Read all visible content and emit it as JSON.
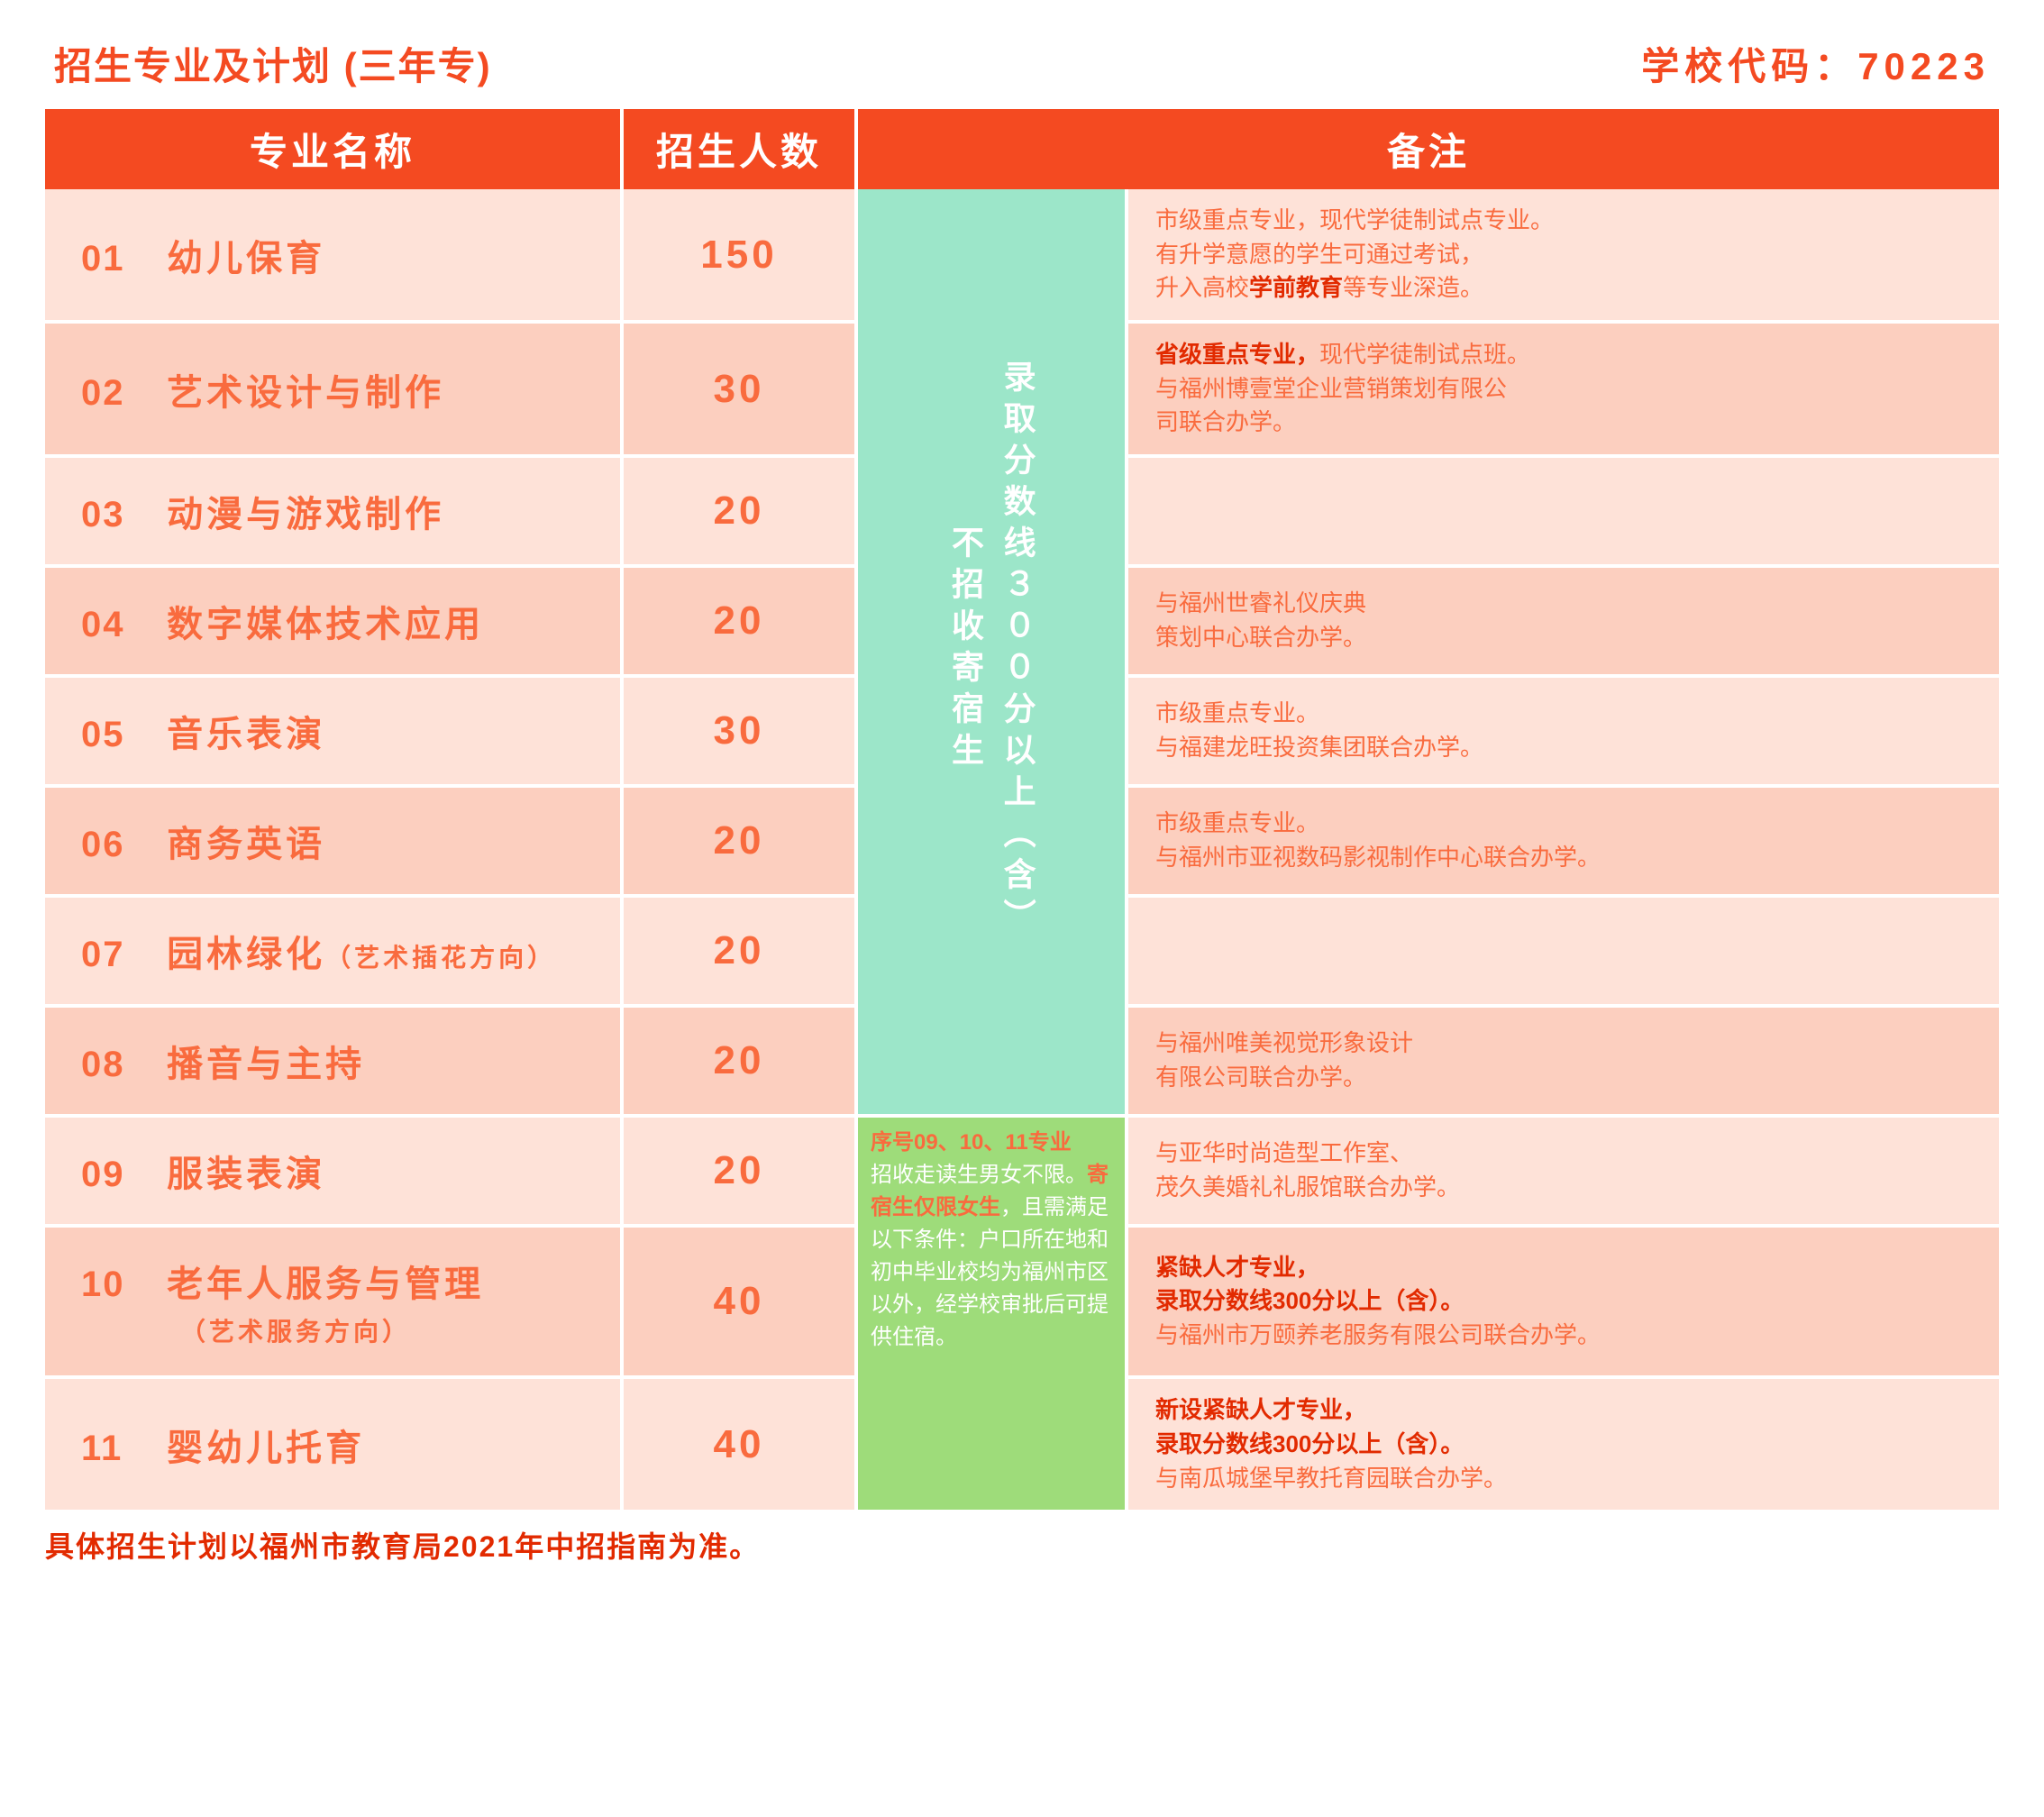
{
  "header": {
    "title_left": "招生专业及计划 (三年专)",
    "title_right": "学校代码：70223"
  },
  "columns": {
    "major": "专业名称",
    "count": "招生人数",
    "note": "备注"
  },
  "mint_condition": {
    "line1": "录取分数线３００分以上（含）",
    "line2": "不招收寄宿生"
  },
  "green_condition": {
    "title": "序号09、10、11专业",
    "pre": "招收走读生男女不限。",
    "mid_strong": "寄宿生仅限女生",
    "post": "，且需满足以下条件：户口所在地和初中毕业校均为福州市区以外，经学校审批后可提供住宿。"
  },
  "rows": [
    {
      "idx": "01",
      "name": "幼儿保育",
      "count": "150",
      "note_html": "市级重点专业，现代学徒制试点专业。<br>有升学意愿的学生可通过考试，<br>升入高校<span class='strong'>学前教育</span>等专业深造。"
    },
    {
      "idx": "02",
      "name": "艺术设计与制作",
      "count": "30",
      "note_html": "<span class='strong'>省级重点专业，</span>现代学徒制试点班。<br>与福州博壹堂企业营销策划有限公<br>司联合办学。"
    },
    {
      "idx": "03",
      "name": "动漫与游戏制作",
      "count": "20",
      "note_html": ""
    },
    {
      "idx": "04",
      "name": "数字媒体技术应用",
      "count": "20",
      "note_html": "与福州世睿礼仪庆典<br>策划中心联合办学。"
    },
    {
      "idx": "05",
      "name": "音乐表演",
      "count": "30",
      "note_html": "市级重点专业。<br>与福建龙旺投资集团联合办学。"
    },
    {
      "idx": "06",
      "name": "商务英语",
      "count": "20",
      "note_html": "市级重点专业。<br>与福州市亚视数码影视制作中心联合办学。"
    },
    {
      "idx": "07",
      "name": "园林绿化",
      "sub_inline": "（艺术插花方向）",
      "count": "20",
      "note_html": ""
    },
    {
      "idx": "08",
      "name": "播音与主持",
      "count": "20",
      "note_html": "与福州唯美视觉形象设计<br>有限公司联合办学。"
    },
    {
      "idx": "09",
      "name": "服装表演",
      "count": "20",
      "note_html": "与亚华时尚造型工作室、<br>茂久美婚礼礼服馆联合办学。"
    },
    {
      "idx": "10",
      "name": "老年人服务与管理",
      "sub_block": "（艺术服务方向）",
      "count": "40",
      "note_html": "<span class='strong'>紧缺人才专业，<br>录取分数线300分以上（含）。</span><br>与福州市万颐养老服务有限公司联合办学。"
    },
    {
      "idx": "11",
      "name": "婴幼儿托育",
      "count": "40",
      "note_html": "<span class='strong'>新设紧缺人才专业，<br>录取分数线300分以上（含）。</span><br>与南瓜城堡早教托育园联合办学。"
    }
  ],
  "footer": "具体招生计划以福州市教育局2021年中招指南为准。",
  "colors": {
    "primary": "#f44a21",
    "text_orange": "#f96b3e",
    "strong_red": "#e22a00",
    "row_odd": "#fee2d8",
    "row_even": "#fccfbf",
    "mint": "#9ce6c9",
    "green": "#9edc7a"
  }
}
